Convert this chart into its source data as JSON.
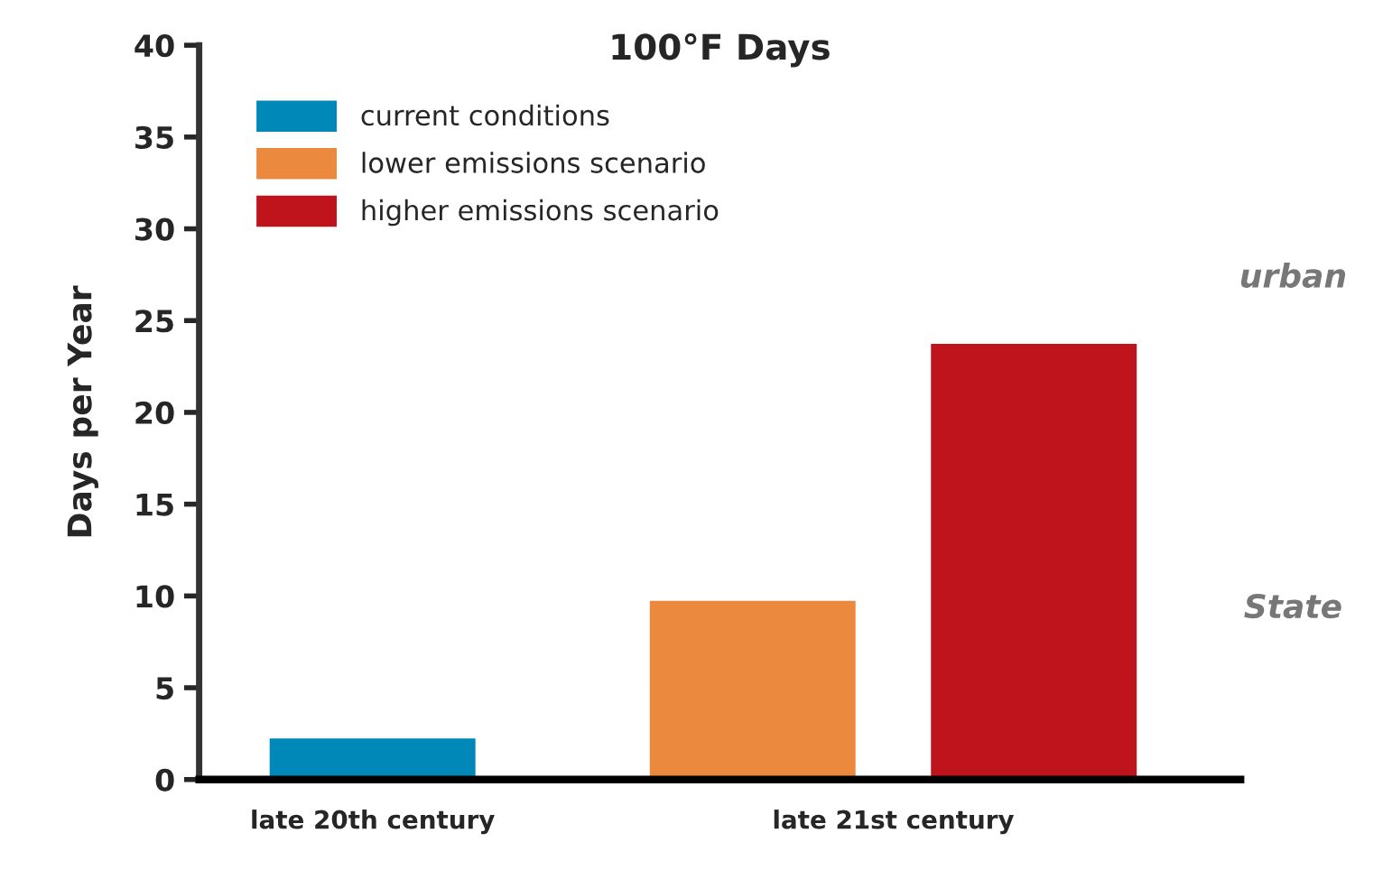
{
  "chart_data": {
    "type": "bar",
    "title": "100°F Days",
    "ylabel": "Days per Year",
    "categories": [
      "late 20th century",
      "late 21st century"
    ],
    "series": [
      {
        "name": "current conditions",
        "color": "#0088b9",
        "values": [
          2.3,
          null
        ]
      },
      {
        "name": "lower emissions scenario",
        "color": "#eb8a3f",
        "values": [
          null,
          9.8
        ]
      },
      {
        "name": "higher emissions scenario",
        "color": "#c0141c",
        "values": [
          null,
          23.8
        ]
      }
    ],
    "ylim": [
      0,
      40
    ],
    "yticks": [
      0,
      5,
      10,
      15,
      20,
      25,
      30,
      35,
      40
    ],
    "grid": false,
    "legend": "top left",
    "annotations": [
      "urban",
      "State"
    ]
  }
}
